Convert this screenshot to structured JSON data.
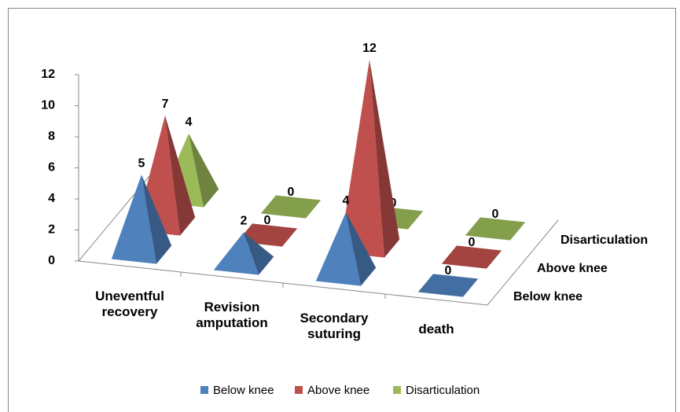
{
  "chart_data": {
    "type": "pyramid3d",
    "categories": [
      "Uneventful recovery",
      "Revision amputation",
      "Secondary suturing",
      "death"
    ],
    "series": [
      {
        "name": "Below knee",
        "color": "#4f81bd",
        "values": [
          5,
          2,
          4,
          0
        ]
      },
      {
        "name": "Above knee",
        "color": "#c0504d",
        "values": [
          7,
          0,
          12,
          0
        ]
      },
      {
        "name": "Disarticulation",
        "color": "#9bbb59",
        "values": [
          4,
          0,
          0,
          0
        ]
      }
    ],
    "ylim": [
      0,
      12
    ],
    "yticks": [
      0,
      2,
      4,
      6,
      8,
      10,
      12
    ],
    "legend": "bottom"
  }
}
